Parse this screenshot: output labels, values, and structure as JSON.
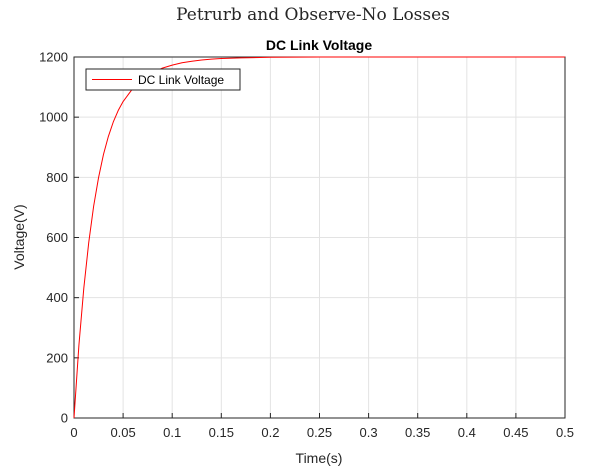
{
  "figure": {
    "supertitle": "Petrurb and Observe-No Losses"
  },
  "chart_data": {
    "type": "line",
    "title": "DC Link Voltage",
    "xlabel": "Time(s)",
    "ylabel": "Voltage(V)",
    "xlim": [
      0,
      0.5
    ],
    "ylim": [
      0,
      1200
    ],
    "xticks": [
      0,
      0.05,
      0.1,
      0.15,
      0.2,
      0.25,
      0.3,
      0.35,
      0.4,
      0.45,
      0.5
    ],
    "xtick_labels": [
      "0",
      "0.05",
      "0.1",
      "0.15",
      "0.2",
      "0.25",
      "0.3",
      "0.35",
      "0.4",
      "0.45",
      "0.5"
    ],
    "yticks": [
      0,
      200,
      400,
      600,
      800,
      1000,
      1200
    ],
    "ytick_labels": [
      "0",
      "200",
      "400",
      "600",
      "800",
      "1000",
      "1200"
    ],
    "grid": true,
    "legend_position": "top-left",
    "series": [
      {
        "name": "DC Link Voltage",
        "color": "#ff0000",
        "x": [
          0,
          0.005,
          0.01,
          0.015,
          0.02,
          0.025,
          0.03,
          0.035,
          0.04,
          0.045,
          0.05,
          0.06,
          0.07,
          0.08,
          0.09,
          0.1,
          0.11,
          0.12,
          0.13,
          0.14,
          0.15,
          0.17,
          0.2,
          0.25,
          0.3,
          0.35,
          0.4,
          0.45,
          0.5
        ],
        "y": [
          0,
          242,
          432,
          583,
          704,
          799,
          876,
          936,
          984,
          1022,
          1052,
          1096,
          1127,
          1148,
          1163,
          1173,
          1181,
          1186,
          1190,
          1193,
          1195,
          1197,
          1199,
          1200,
          1200,
          1200,
          1200,
          1200,
          1200
        ]
      }
    ]
  }
}
